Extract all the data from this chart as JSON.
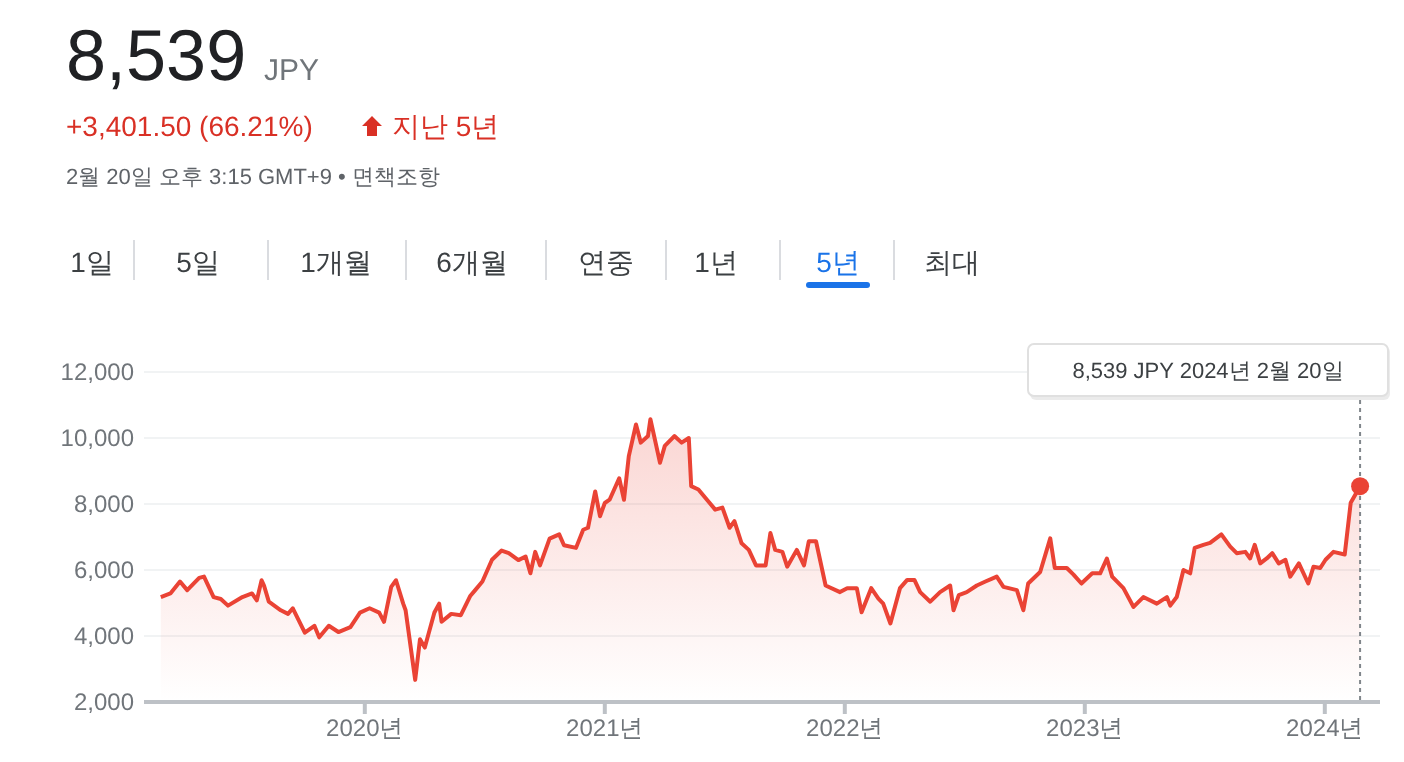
{
  "chart_data": {
    "type": "area",
    "title": "8,539",
    "subtitle": "JPY",
    "annotations": [
      "+3,401.50 (66.21%)",
      "지난 5년",
      "2월 20일 오후 3:15 GMT+9 • 면책조항",
      "1일",
      "5일",
      "1개월",
      "6개월",
      "연중",
      "1년",
      "5년",
      "최대",
      "8,539 JPY  2024년 2월 20일"
    ],
    "ref_lines": [
      {
        "axis": "x",
        "value": 2024.147,
        "line_style": "dotted",
        "color": "#80868b"
      }
    ],
    "grid": "y",
    "xlim": [
      2019.08,
      2024.23
    ],
    "ylim": [
      2000,
      12000
    ],
    "xticks": [
      {
        "value": 2020,
        "label": "2020년"
      },
      {
        "value": 2021,
        "label": "2021년"
      },
      {
        "value": 2022,
        "label": "2022년"
      },
      {
        "value": 2023,
        "label": "2023년"
      },
      {
        "value": 2024,
        "label": "2024년"
      }
    ],
    "yticks": [
      {
        "value": 2000,
        "label": "2,000"
      },
      {
        "value": 4000,
        "label": "4,000"
      },
      {
        "value": 6000,
        "label": "6,000"
      },
      {
        "value": 8000,
        "label": "8,000"
      },
      {
        "value": 10000,
        "label": "10,000"
      },
      {
        "value": 12000,
        "label": "12,000"
      }
    ],
    "series": [
      {
        "color": "#ea4335",
        "x": [
          2019.15,
          2019.19,
          2019.23,
          2019.26,
          2019.31,
          2019.33,
          2019.37,
          2019.4,
          2019.43,
          2019.49,
          2019.53,
          2019.55,
          2019.57,
          2019.58,
          2019.6,
          2019.65,
          2019.68,
          2019.7,
          2019.75,
          2019.79,
          2019.81,
          2019.85,
          2019.89,
          2019.94,
          2019.98,
          2020.02,
          2020.06,
          2020.08,
          2020.11,
          2020.13,
          2020.16,
          2020.17,
          2020.21,
          2020.23,
          2020.25,
          2020.29,
          2020.31,
          2020.32,
          2020.36,
          2020.4,
          2020.44,
          2020.46,
          2020.49,
          2020.53,
          2020.57,
          2020.6,
          2020.64,
          2020.67,
          2020.69,
          2020.71,
          2020.73,
          2020.77,
          2020.81,
          2020.83,
          2020.88,
          2020.91,
          2020.93,
          2020.96,
          2020.98,
          2021.0,
          2021.02,
          2021.06,
          2021.08,
          2021.1,
          2021.13,
          2021.15,
          2021.18,
          2021.19,
          2021.23,
          2021.25,
          2021.29,
          2021.32,
          2021.35,
          2021.36,
          2021.39,
          2021.43,
          2021.46,
          2021.49,
          2021.52,
          2021.54,
          2021.57,
          2021.6,
          2021.63,
          2021.67,
          2021.69,
          2021.71,
          2021.74,
          2021.76,
          2021.8,
          2021.83,
          2021.85,
          2021.88,
          2021.92,
          2021.98,
          2022.01,
          2022.05,
          2022.07,
          2022.11,
          2022.14,
          2022.16,
          2022.19,
          2022.23,
          2022.26,
          2022.29,
          2022.314,
          2022.356,
          2022.397,
          2022.439,
          2022.453,
          2022.475,
          2022.508,
          2022.55,
          2022.586,
          2022.633,
          2022.661,
          2022.717,
          2022.744,
          2022.764,
          2022.814,
          2022.856,
          2022.875,
          2022.925,
          2022.953,
          2022.986,
          2023.031,
          2023.064,
          2023.092,
          2023.114,
          2023.161,
          2023.203,
          2023.244,
          2023.3,
          2023.342,
          2023.356,
          2023.383,
          2023.411,
          2023.439,
          2023.458,
          2023.494,
          2023.522,
          2023.569,
          2023.606,
          2023.633,
          2023.669,
          2023.689,
          2023.708,
          2023.731,
          2023.758,
          2023.781,
          2023.808,
          2023.836,
          2023.856,
          2023.892,
          2023.931,
          2023.953,
          2023.981,
          2024.003,
          2024.036,
          2024.083,
          2024.108,
          2024.147
        ],
        "values": [
          5180,
          5290,
          5650,
          5390,
          5760,
          5800,
          5180,
          5120,
          4920,
          5180,
          5290,
          5080,
          5690,
          5530,
          5040,
          4780,
          4670,
          4840,
          4100,
          4310,
          3960,
          4310,
          4120,
          4270,
          4710,
          4840,
          4710,
          4430,
          5490,
          5690,
          4980,
          4780,
          2670,
          3900,
          3650,
          4710,
          4980,
          4430,
          4670,
          4630,
          5220,
          5390,
          5650,
          6310,
          6590,
          6510,
          6300,
          6410,
          5900,
          6550,
          6140,
          6950,
          7080,
          6750,
          6670,
          7220,
          7280,
          8380,
          7630,
          8030,
          8130,
          8780,
          8130,
          9450,
          10410,
          9860,
          10060,
          10570,
          9250,
          9760,
          10060,
          9860,
          10000,
          8540,
          8440,
          8090,
          7830,
          7890,
          7280,
          7480,
          6810,
          6610,
          6140,
          6140,
          7120,
          6610,
          6550,
          6100,
          6610,
          6140,
          6870,
          6870,
          5530,
          5330,
          5450,
          5450,
          4720,
          5450,
          5130,
          4980,
          4380,
          5450,
          5700,
          5700,
          5330,
          5040,
          5330,
          5530,
          4780,
          5240,
          5330,
          5530,
          5650,
          5800,
          5490,
          5390,
          4780,
          5590,
          5940,
          6960,
          6060,
          6060,
          5860,
          5590,
          5900,
          5900,
          6350,
          5800,
          5450,
          4880,
          5180,
          4980,
          5180,
          4920,
          5180,
          6000,
          5900,
          6670,
          6760,
          6820,
          7080,
          6710,
          6510,
          6550,
          6350,
          6760,
          6200,
          6350,
          6510,
          6200,
          6310,
          5800,
          6200,
          5590,
          6100,
          6060,
          6310,
          6550,
          6470,
          8040,
          8539
        ]
      }
    ]
  }
}
